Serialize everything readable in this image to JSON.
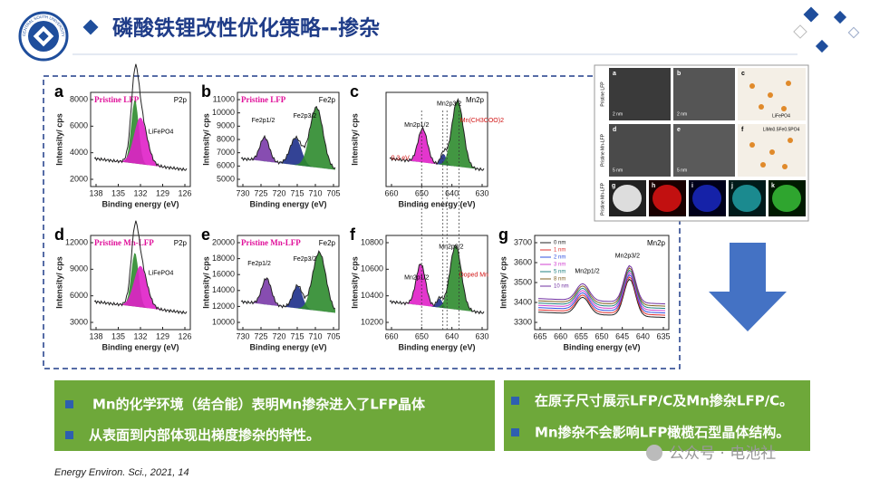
{
  "header": {
    "title": "磷酸铁锂改性优化策略--掺杂",
    "logo_text": "CENTRAL SOUTH UNIVERSITY"
  },
  "figure": {
    "x_label": "Binding energy (eV)",
    "y_label": "Intensity/ cps",
    "panels": [
      {
        "letter": "a",
        "title": "Pristine LFP",
        "element": "P2p",
        "xticks": [
          138,
          135,
          132,
          129,
          126
        ],
        "yticks": [
          2000,
          4000,
          6000,
          8000
        ],
        "annotations": [
          "LiFePO4"
        ]
      },
      {
        "letter": "b",
        "title": "Pristine LFP",
        "element": "Fe2p",
        "xticks": [
          730,
          725,
          720,
          715,
          710,
          705
        ],
        "yticks": [
          5000,
          6000,
          7000,
          8000,
          9000,
          10000,
          11000
        ],
        "annotations": [
          "Fe2p1/2",
          "Fe2p3/2"
        ]
      },
      {
        "letter": "c",
        "element": "Mn2p",
        "xticks": [
          660,
          650,
          640,
          630
        ],
        "yticks": [],
        "annotations": [
          "Mn2p1/2",
          "Mn2p3/2",
          "Mn(CH3COO)2",
          "0.3 eV"
        ]
      },
      {
        "letter": "d",
        "title": "Pristine Mn-LFP",
        "element": "P2p",
        "xticks": [
          138,
          135,
          132,
          129,
          126
        ],
        "yticks": [
          3000,
          6000,
          9000,
          12000
        ],
        "annotations": [
          "LiFePO4"
        ]
      },
      {
        "letter": "e",
        "title": "Pristine Mn-LFP",
        "element": "Fe2p",
        "xticks": [
          730,
          725,
          720,
          715,
          710,
          705
        ],
        "yticks": [
          10000,
          12000,
          14000,
          16000,
          18000,
          20000
        ],
        "annotations": [
          "Fe2p1/2",
          "Fe2p3/2"
        ]
      },
      {
        "letter": "f",
        "xticks": [
          660,
          650,
          640,
          630
        ],
        "yticks": [
          10200,
          10400,
          10600,
          10800
        ],
        "annotations": [
          "Mn2p1/2",
          "Mn2p3/2",
          "Doped Mn"
        ]
      },
      {
        "letter": "g",
        "element": "Mn2p",
        "xticks": [
          665,
          660,
          655,
          650,
          645,
          640,
          635
        ],
        "yticks": [
          3300,
          3400,
          3500,
          3600,
          3700
        ],
        "annotations": [
          "Mn2p1/2",
          "Mn2p3/2"
        ],
        "legend": [
          "0 nm",
          "1 nm",
          "2 nm",
          "3 nm",
          "5 nm",
          "8 nm",
          "10 nm"
        ]
      }
    ]
  },
  "micrograph": {
    "row_labels": [
      "Pristine LFP",
      "Pristine Mn-LFP",
      "Pristine Mn-LFP"
    ],
    "letters": [
      "a",
      "b",
      "c",
      "d",
      "e",
      "f",
      "g",
      "h",
      "i",
      "j",
      "k"
    ],
    "scale_bars": [
      "2 nm",
      "2 nm",
      "5 nm",
      "5 nm"
    ],
    "structures": [
      "LiFePO4",
      "LiMn0.5Fe0.5PO4"
    ]
  },
  "bullets_left": [
    "Mn的化学环境（结合能）表明Mn掺杂进入了LFP晶体",
    "从表面到内部体现出梯度掺杂的特性。"
  ],
  "bullets_right": [
    "在原子尺寸展示LFP/C及Mn掺杂LFP/C。",
    "Mn掺杂不会影响LFP橄榄石型晶体结构。"
  ],
  "citation": "Energy Environ. Sci., 2021, 14",
  "watermark": "公众号 · 电池社"
}
